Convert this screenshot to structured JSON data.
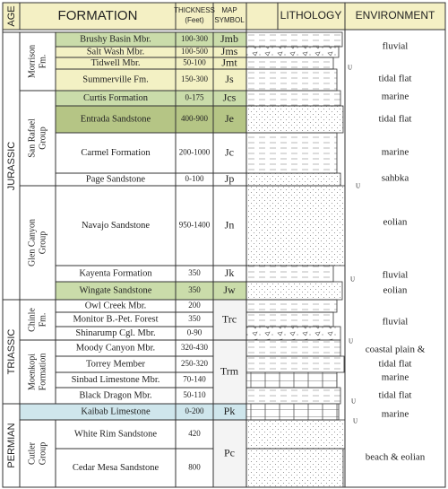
{
  "header": {
    "age": "AGE",
    "formation": "FORMATION",
    "thickness": [
      "THICKNESS",
      "(Feet)"
    ],
    "map_symbol": [
      "MAP",
      "SYMBOL"
    ],
    "lithology": "LITHOLOGY",
    "environment": "ENVIRONMENT"
  },
  "ages": [
    {
      "label": "JURASSIC",
      "groups": [
        {
          "label": [
            "Morrison",
            "Fm."
          ],
          "units": [
            {
              "symbol": "Jmb",
              "rows": [
                {
                  "name": "Brushy Basin Mbr.",
                  "thickness": "100-300"
                }
              ]
            },
            {
              "symbol": "Jms",
              "rows": [
                {
                  "name": "Salt Wash Mbr.",
                  "thickness": "100-500"
                }
              ]
            },
            {
              "symbol": "Jmt",
              "rows": [
                {
                  "name": "Tidwell Mbr.",
                  "thickness": "50-100"
                }
              ]
            },
            {
              "symbol": "Js",
              "rows": [
                {
                  "name": "Summerville Fm.",
                  "thickness": "150-300"
                }
              ]
            }
          ]
        },
        {
          "label": [
            "San Rafael",
            "Group"
          ],
          "units": [
            {
              "symbol": "Jcs",
              "rows": [
                {
                  "name": "Curtis Formation",
                  "thickness": "0-175"
                }
              ]
            },
            {
              "symbol": "Je",
              "rows": [
                {
                  "name": "Entrada Sandstone",
                  "thickness": "400-900"
                }
              ]
            },
            {
              "symbol": "Jc",
              "rows": [
                {
                  "name": "Carmel Formation",
                  "thickness": "200-1000"
                }
              ]
            },
            {
              "symbol": "Jp",
              "rows": [
                {
                  "name": "Page Sandstone",
                  "thickness": "0-100"
                }
              ]
            }
          ]
        },
        {
          "label": [
            "Glen Canyon",
            "Group"
          ],
          "units": [
            {
              "symbol": "Jn",
              "rows": [
                {
                  "name": "Navajo Sandstone",
                  "thickness": "950-1400"
                }
              ]
            },
            {
              "symbol": "Jk",
              "rows": [
                {
                  "name": "Kayenta Formation",
                  "thickness": "350"
                }
              ]
            },
            {
              "symbol": "Jw",
              "rows": [
                {
                  "name": "Wingate Sandstone",
                  "thickness": "350"
                }
              ]
            }
          ]
        }
      ]
    },
    {
      "label": "TRIASSIC",
      "groups": [
        {
          "label": [
            "Chinle",
            "Fm."
          ],
          "units": [
            {
              "symbol": "Trc",
              "rows": [
                {
                  "name": "Owl Creek Mbr.",
                  "thickness": "200"
                },
                {
                  "name": "Monitor B.-Pet. Forest",
                  "thickness": "350"
                },
                {
                  "name": "Shinarump Cgl. Mbr.",
                  "thickness": "0-90"
                }
              ]
            }
          ]
        },
        {
          "label": [
            "Moenkopi",
            "Formation"
          ],
          "units": [
            {
              "symbol": "Trm",
              "rows": [
                {
                  "name": "Moody Canyon Mbr.",
                  "thickness": "320-430"
                },
                {
                  "name": "Torrey Member",
                  "thickness": "250-320"
                },
                {
                  "name": "Sinbad Limestone Mbr.",
                  "thickness": "70-140"
                },
                {
                  "name": "Black Dragon Mbr.",
                  "thickness": "50-110"
                }
              ]
            }
          ]
        }
      ]
    },
    {
      "label": "PERMIAN",
      "groups": [
        {
          "units": [
            {
              "symbol": "Pk",
              "rows": [
                {
                  "name": "Kaibab Limestone",
                  "thickness": "0-200"
                }
              ]
            }
          ]
        },
        {
          "label": [
            "Cutler",
            "Group"
          ],
          "units": [
            {
              "symbol": "Pc",
              "rows": [
                {
                  "name": "White Rim Sandstone",
                  "thickness": "420"
                },
                {
                  "name": "Cedar Mesa Sandstone",
                  "thickness": "800"
                }
              ]
            }
          ]
        }
      ]
    }
  ],
  "environments": [
    "fluvial",
    "tidal flat",
    "marine",
    "tidal flat",
    "marine",
    "sahbka",
    "eolian",
    "fluvial",
    "eolian",
    "fluvial",
    "coastal plain &",
    "tidal flat",
    "marine",
    "tidal flat",
    "marine",
    "beach & eolian"
  ],
  "unconformities": [
    "U",
    "U",
    "U",
    "U",
    "U",
    "U"
  ]
}
